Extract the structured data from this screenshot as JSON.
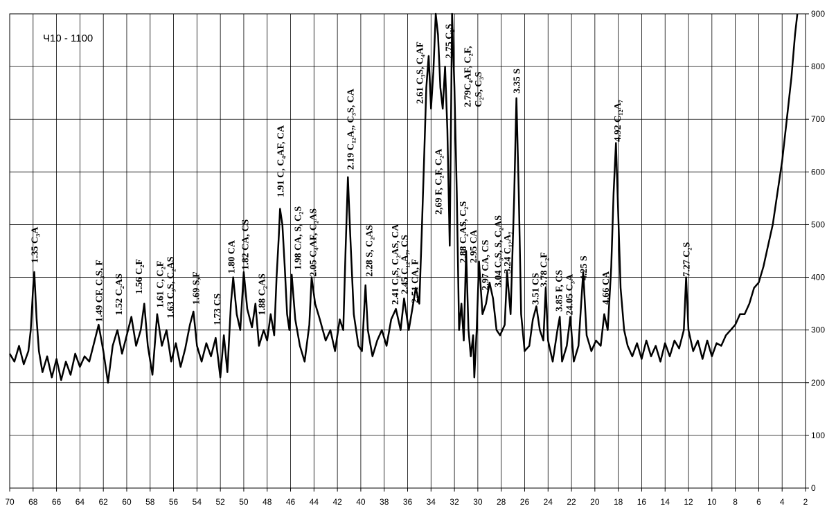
{
  "chart_data": {
    "type": "line",
    "title": "Ч10 - 1100",
    "xlim": [
      70,
      2
    ],
    "ylim": [
      0,
      900
    ],
    "xticks": [
      70,
      68,
      66,
      64,
      62,
      60,
      58,
      56,
      54,
      52,
      50,
      48,
      46,
      44,
      42,
      40,
      38,
      36,
      34,
      32,
      30,
      28,
      26,
      24,
      22,
      20,
      18,
      16,
      14,
      12,
      10,
      8,
      6,
      4,
      2
    ],
    "yticks": [
      0,
      100,
      200,
      300,
      400,
      500,
      600,
      700,
      800,
      900
    ],
    "grid": true,
    "color": "#000000",
    "x": [
      70,
      69.6,
      69.2,
      68.8,
      68.4,
      68.2,
      68.0,
      67.9,
      67.7,
      67.5,
      67.2,
      66.8,
      66.4,
      66.0,
      65.6,
      65.2,
      64.8,
      64.4,
      64.0,
      63.6,
      63.2,
      62.8,
      62.4,
      62.0,
      61.6,
      61.2,
      60.8,
      60.4,
      60.0,
      59.6,
      59.2,
      58.8,
      58.5,
      58.2,
      57.8,
      57.4,
      57.0,
      56.6,
      56.2,
      55.8,
      55.4,
      55.0,
      54.6,
      54.3,
      54.0,
      53.6,
      53.2,
      52.8,
      52.4,
      52.0,
      51.7,
      51.4,
      51.1,
      50.9,
      50.6,
      50.3,
      50.0,
      49.7,
      49.3,
      49.0,
      48.7,
      48.3,
      48.0,
      47.7,
      47.4,
      47.2,
      47.0,
      46.9,
      46.7,
      46.5,
      46.3,
      46.1,
      45.9,
      45.6,
      45.2,
      44.8,
      44.4,
      44.2,
      43.9,
      43.5,
      43.0,
      42.6,
      42.2,
      41.8,
      41.5,
      41.3,
      41.1,
      40.9,
      40.6,
      40.2,
      39.9,
      39.6,
      39.4,
      39.0,
      38.6,
      38.2,
      37.8,
      37.4,
      37.0,
      36.6,
      36.3,
      35.9,
      35.6,
      35.3,
      35.0,
      34.8,
      34.6,
      34.4,
      34.2,
      34.0,
      33.8,
      33.6,
      33.4,
      33.2,
      33.0,
      32.8,
      32.6,
      32.4,
      32.2,
      32.0,
      31.8,
      31.6,
      31.4,
      31.2,
      31.0,
      30.8,
      30.6,
      30.4,
      30.3,
      30.1,
      29.9,
      29.6,
      29.3,
      29.0,
      28.7,
      28.4,
      28.1,
      27.7,
      27.5,
      27.2,
      26.9,
      26.7,
      26.5,
      26.3,
      26.0,
      25.6,
      25.3,
      25.0,
      24.7,
      24.4,
      24.2,
      24.0,
      23.6,
      23.2,
      23.0,
      22.8,
      22.4,
      22.1,
      21.8,
      21.4,
      21.0,
      20.7,
      20.3,
      19.9,
      19.5,
      19.2,
      18.9,
      18.6,
      18.4,
      18.2,
      18.0,
      17.8,
      17.5,
      17.2,
      16.8,
      16.4,
      16.0,
      15.6,
      15.2,
      14.8,
      14.4,
      14.0,
      13.6,
      13.2,
      12.8,
      12.4,
      12.2,
      12.0,
      11.6,
      11.2,
      10.8,
      10.4,
      10.0,
      9.6,
      9.2,
      8.8,
      8.4,
      8.0,
      7.6,
      7.2,
      6.8,
      6.4,
      6.0,
      5.6,
      5.2,
      4.8,
      4.4,
      4.0,
      3.6,
      3.2,
      2.9,
      2.7
    ],
    "values": [
      255,
      240,
      270,
      235,
      260,
      300,
      380,
      410,
      320,
      260,
      220,
      250,
      210,
      245,
      205,
      240,
      215,
      255,
      230,
      250,
      240,
      275,
      310,
      260,
      200,
      270,
      300,
      255,
      290,
      325,
      270,
      300,
      350,
      270,
      215,
      330,
      270,
      300,
      240,
      275,
      230,
      265,
      310,
      335,
      270,
      240,
      275,
      250,
      285,
      210,
      290,
      220,
      350,
      400,
      330,
      300,
      410,
      340,
      305,
      350,
      270,
      300,
      280,
      330,
      290,
      400,
      480,
      530,
      500,
      420,
      330,
      300,
      405,
      320,
      270,
      240,
      310,
      400,
      350,
      320,
      280,
      300,
      260,
      320,
      300,
      450,
      590,
      480,
      330,
      270,
      260,
      385,
      300,
      250,
      280,
      300,
      270,
      320,
      340,
      300,
      360,
      300,
      340,
      380,
      350,
      480,
      620,
      760,
      820,
      720,
      790,
      900,
      860,
      760,
      720,
      800,
      680,
      460,
      900,
      760,
      560,
      300,
      350,
      280,
      450,
      300,
      250,
      290,
      210,
      300,
      430,
      330,
      350,
      390,
      360,
      300,
      290,
      310,
      410,
      330,
      550,
      740,
      560,
      330,
      260,
      270,
      320,
      345,
      300,
      280,
      380,
      280,
      240,
      300,
      325,
      240,
      270,
      325,
      240,
      270,
      410,
      290,
      260,
      280,
      270,
      330,
      300,
      420,
      560,
      655,
      520,
      380,
      300,
      270,
      250,
      275,
      245,
      280,
      250,
      270,
      240,
      275,
      250,
      280,
      265,
      300,
      400,
      300,
      260,
      280,
      245,
      280,
      250,
      275,
      270,
      290,
      300,
      310,
      330,
      330,
      350,
      380,
      390,
      420,
      460,
      500,
      560,
      620,
      700,
      780,
      860,
      900
    ],
    "annotations": [
      {
        "text": "1.35 C₃A",
        "x": 67.9,
        "y": 427
      },
      {
        "text": "1.49 CF, C₃S, F",
        "x": 62.4,
        "y": 315
      },
      {
        "text": "1.52 C₂AS",
        "x": 60.7,
        "y": 328
      },
      {
        "text": "1.56 C₂F",
        "x": 59.0,
        "y": 368
      },
      {
        "text": "1.61 C, C₂F",
        "x": 57.2,
        "y": 342
      },
      {
        "text": "1.63 C₃S, C₂AS",
        "x": 56.3,
        "y": 322
      },
      {
        "text": "1.69 S,F",
        "x": 54.1,
        "y": 348
      },
      {
        "text": "1.73 CS",
        "x": 52.3,
        "y": 309
      },
      {
        "text": "1.80 CA",
        "x": 51.1,
        "y": 407
      },
      {
        "text": "1.82 CA, CS",
        "x": 49.9,
        "y": 414
      },
      {
        "text": "1.88 C₂AS",
        "x": 48.5,
        "y": 328
      },
      {
        "text": "1.91 C, C₄AF, CA",
        "x": 46.9,
        "y": 552
      },
      {
        "text": "1.98 CA, S, C₂S",
        "x": 45.4,
        "y": 414
      },
      {
        "text": "2.05 C₄AF, C₂AS",
        "x": 44.1,
        "y": 401
      },
      {
        "text": "2.19 C₁₂A₇, C₃S, CA",
        "x": 40.9,
        "y": 604
      },
      {
        "text": "2.28 S, C₂AS",
        "x": 39.3,
        "y": 401
      },
      {
        "text": "2.41 C₂S, C₂AS, CA",
        "x": 37.1,
        "y": 348
      },
      {
        "text": "2.45 C₁₂A₇, CS",
        "x": 36.3,
        "y": 368
      },
      {
        "text": "2.51 CA, F",
        "x": 35.4,
        "y": 351
      },
      {
        "text": "2.61 C₃S, C₄AF",
        "x": 35.0,
        "y": 729
      },
      {
        "text": "2,69 F, C₂F, C₂A",
        "x": 33.4,
        "y": 519
      },
      {
        "text": "2.75 C₂S",
        "x": 32.5,
        "y": 815
      },
      {
        "text": "2.79C₄AF, C₂F,",
        "x": 30.9,
        "y": 723
      },
      {
        "text": "C₂S, C₃S",
        "x": 30.0,
        "y": 723
      },
      {
        "text": "2.88 C₂AS, C₂S",
        "x": 31.3,
        "y": 427
      },
      {
        "text": "2.95 CA",
        "x": 30.4,
        "y": 427
      },
      {
        "text": "2.97 CA, CS",
        "x": 29.4,
        "y": 375
      },
      {
        "text": "3.04 C₃S, S, C₂AS",
        "x": 28.3,
        "y": 381
      },
      {
        "text": "3.24 C₁₂A₇",
        "x": 27.5,
        "y": 407
      },
      {
        "text": "3.35 S",
        "x": 26.7,
        "y": 749
      },
      {
        "text": "3.51 CS",
        "x": 25.1,
        "y": 348
      },
      {
        "text": "3.78 C₂F",
        "x": 24.4,
        "y": 381
      },
      {
        "text": "3.85 F, CS",
        "x": 23.1,
        "y": 335
      },
      {
        "text": "24.05 C₃A",
        "x": 22.2,
        "y": 328
      },
      {
        "text": "4.25 S",
        "x": 21.0,
        "y": 394
      },
      {
        "text": "4.66 CA",
        "x": 19.1,
        "y": 348
      },
      {
        "text": "4.92 C₁₂A₇",
        "x": 18.1,
        "y": 657
      },
      {
        "text": "7.27 C₂S",
        "x": 12.2,
        "y": 401
      }
    ]
  }
}
